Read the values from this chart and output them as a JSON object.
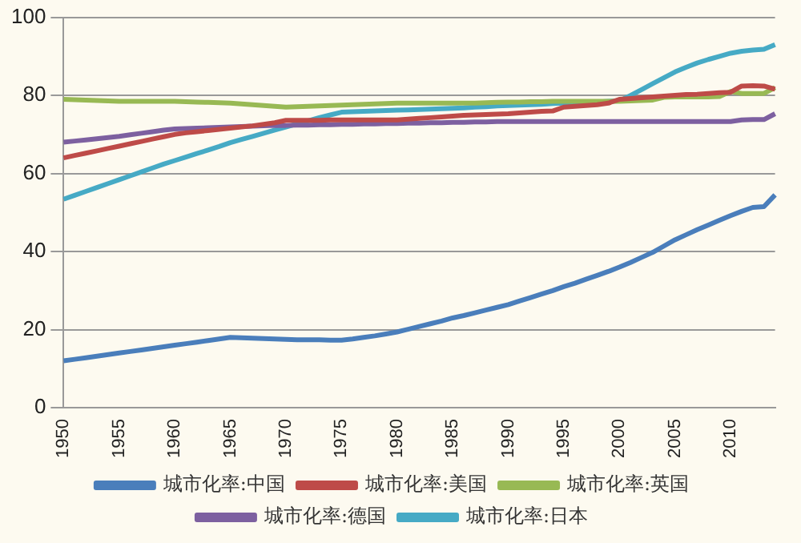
{
  "chart_data": {
    "type": "line",
    "categories": [
      "1950",
      null,
      null,
      null,
      null,
      "1955",
      null,
      null,
      null,
      null,
      "1960",
      null,
      null,
      null,
      null,
      "1965",
      null,
      null,
      null,
      null,
      "1970",
      null,
      null,
      null,
      null,
      "1975",
      null,
      null,
      null,
      null,
      "1980",
      null,
      null,
      null,
      null,
      "1985",
      null,
      null,
      null,
      null,
      "1990",
      null,
      null,
      null,
      null,
      "1995",
      null,
      null,
      null,
      null,
      "2000",
      null,
      null,
      null,
      null,
      "2005",
      null,
      null,
      null,
      null,
      "2010",
      null,
      null,
      null,
      null
    ],
    "series": [
      {
        "name": "城市化率:中国",
        "color": "#4a7ebb",
        "values": [
          12,
          12.4,
          12.8,
          13.2,
          13.6,
          14,
          14.4,
          14.8,
          15.2,
          15.6,
          16,
          16.4,
          16.8,
          17.2,
          17.6,
          18,
          17.9,
          17.8,
          17.7,
          17.6,
          17.5,
          17.4,
          17.4,
          17.4,
          17.3,
          17.3,
          17.6,
          18,
          18.4,
          18.9,
          19.4,
          20.1,
          20.8,
          21.5,
          22.2,
          23,
          23.6,
          24.3,
          25,
          25.7,
          26.4,
          27.3,
          28.2,
          29.1,
          30,
          31,
          31.9,
          32.9,
          33.9,
          34.9,
          36,
          37.2,
          38.5,
          39.8,
          41.4,
          43,
          44.3,
          45.6,
          46.8,
          48,
          49.2,
          50.3,
          51.3,
          51.5,
          54.5
        ]
      },
      {
        "name": "城市化率:美国",
        "color": "#be4b48",
        "values": [
          64,
          64.6,
          65.2,
          65.8,
          66.4,
          67,
          67.6,
          68.2,
          68.8,
          69.4,
          70,
          70.4,
          70.7,
          71,
          71.3,
          71.6,
          71.9,
          72.2,
          72.6,
          73,
          73.6,
          73.6,
          73.6,
          73.6,
          73.7,
          73.7,
          73.7,
          73.7,
          73.7,
          73.7,
          73.7,
          73.9,
          74.1,
          74.3,
          74.5,
          74.7,
          74.9,
          75,
          75.1,
          75.2,
          75.3,
          75.5,
          75.7,
          75.9,
          76,
          77,
          77.2,
          77.4,
          77.6,
          78,
          79,
          79.2,
          79.4,
          79.6,
          79.8,
          80,
          80.2,
          80.3,
          80.5,
          80.7,
          80.8,
          82.4,
          82.5,
          82.4,
          81.6
        ]
      },
      {
        "name": "城市化率:英国",
        "color": "#98b954",
        "values": [
          79,
          78.9,
          78.8,
          78.7,
          78.6,
          78.5,
          78.5,
          78.5,
          78.5,
          78.5,
          78.5,
          78.4,
          78.3,
          78.2,
          78.1,
          78,
          77.8,
          77.6,
          77.4,
          77.2,
          77,
          77.1,
          77.2,
          77.3,
          77.4,
          77.5,
          77.6,
          77.7,
          77.8,
          77.9,
          78,
          78,
          78,
          78,
          78,
          78,
          78,
          78,
          78.1,
          78.2,
          78.3,
          78.3,
          78.4,
          78.4,
          78.5,
          78.5,
          78.5,
          78.5,
          78.5,
          78.5,
          78.5,
          78.6,
          78.7,
          78.8,
          79.5,
          79.6,
          79.6,
          79.6,
          79.6,
          79.7,
          81,
          80.5,
          80.5,
          80.5,
          82
        ]
      },
      {
        "name": "城市化率:德国",
        "color": "#7d60a0",
        "values": [
          68,
          68.3,
          68.6,
          68.9,
          69.2,
          69.5,
          69.9,
          70.3,
          70.7,
          71.1,
          71.4,
          71.5,
          71.6,
          71.7,
          71.8,
          71.9,
          72,
          72.1,
          72.2,
          72.3,
          72.3,
          72.4,
          72.4,
          72.5,
          72.5,
          72.6,
          72.6,
          72.7,
          72.7,
          72.8,
          72.8,
          72.9,
          72.9,
          73,
          73,
          73.1,
          73.1,
          73.2,
          73.2,
          73.3,
          73.3,
          73.3,
          73.3,
          73.3,
          73.3,
          73.3,
          73.3,
          73.3,
          73.3,
          73.3,
          73.3,
          73.3,
          73.3,
          73.3,
          73.3,
          73.3,
          73.3,
          73.3,
          73.3,
          73.3,
          73.3,
          73.7,
          73.8,
          73.8,
          75.3
        ]
      },
      {
        "name": "城市化率:日本",
        "color": "#46aac5",
        "values": [
          53.4,
          54.4,
          55.4,
          56.4,
          57.4,
          58.4,
          59.4,
          60.4,
          61.4,
          62.4,
          63.3,
          64.2,
          65.1,
          66,
          66.9,
          67.9,
          68.7,
          69.5,
          70.3,
          71.1,
          71.9,
          72.7,
          73.5,
          74.3,
          75,
          75.7,
          75.8,
          75.9,
          76,
          76.1,
          76.2,
          76.3,
          76.4,
          76.5,
          76.6,
          76.7,
          76.8,
          77,
          77.1,
          77.3,
          77.4,
          77.5,
          77.6,
          77.7,
          77.9,
          78,
          78.1,
          78.2,
          78.3,
          78.5,
          78.6,
          80,
          81.5,
          83,
          84.5,
          86,
          87.2,
          88.3,
          89.2,
          90,
          90.8,
          91.3,
          91.6,
          91.8,
          93
        ]
      }
    ],
    "ylim": [
      0,
      100
    ],
    "yticks": [
      0,
      20,
      40,
      60,
      80,
      100
    ],
    "grid": "y",
    "legend": "bottom",
    "marker": "none",
    "line_style": "solid"
  }
}
